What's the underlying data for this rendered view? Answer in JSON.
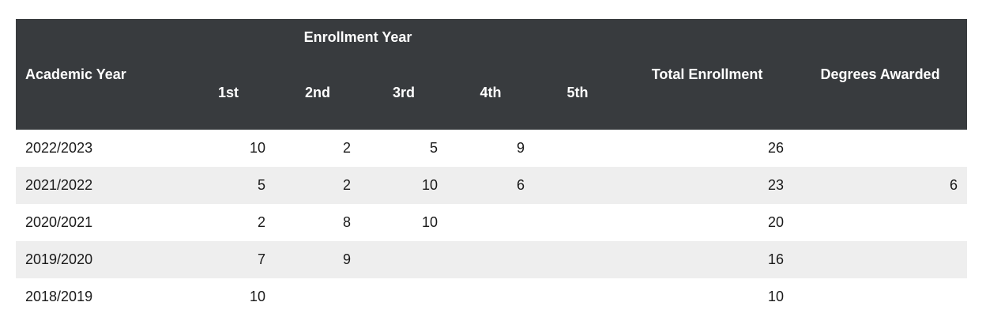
{
  "header": {
    "academic_year": "Academic Year",
    "enrollment_year": "Enrollment Year",
    "total_enrollment": "Total Enrollment",
    "degrees_awarded": "Degrees Awarded",
    "sub": [
      "1st",
      "2nd",
      "3rd",
      "4th",
      "5th"
    ]
  },
  "rows": [
    {
      "year": "2022/2023",
      "c1": "10",
      "c2": "2",
      "c3": "5",
      "c4": "9",
      "c5": "",
      "total": "26",
      "degrees": ""
    },
    {
      "year": "2021/2022",
      "c1": "5",
      "c2": "2",
      "c3": "10",
      "c4": "6",
      "c5": "",
      "total": "23",
      "degrees": "6"
    },
    {
      "year": "2020/2021",
      "c1": "2",
      "c2": "8",
      "c3": "10",
      "c4": "",
      "c5": "",
      "total": "20",
      "degrees": ""
    },
    {
      "year": "2019/2020",
      "c1": "7",
      "c2": "9",
      "c3": "",
      "c4": "",
      "c5": "",
      "total": "16",
      "degrees": ""
    },
    {
      "year": "2018/2019",
      "c1": "10",
      "c2": "",
      "c3": "",
      "c4": "",
      "c5": "",
      "total": "10",
      "degrees": ""
    }
  ]
}
